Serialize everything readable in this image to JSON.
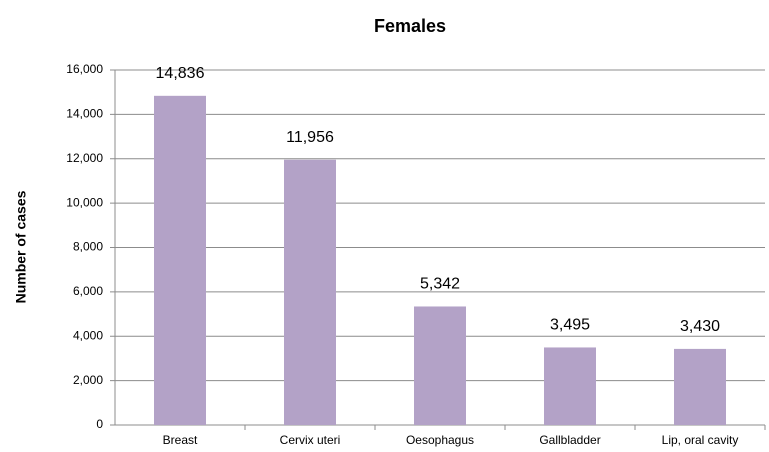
{
  "chart_data": {
    "type": "bar",
    "title": "Females",
    "y_label": "Number of cases",
    "categories": [
      "Breast",
      "Cervix uteri",
      "Oesophagus",
      "Gallbladder",
      "Lip, oral cavity"
    ],
    "values": [
      14836,
      11956,
      5342,
      3495,
      3430
    ],
    "value_labels": [
      "14,836",
      "11,956",
      "5,342",
      "3,495",
      "3,430"
    ],
    "color": "#b3a2c7",
    "ylim": [
      0,
      16000
    ],
    "yticks": [
      0,
      {
        "value": 2000,
        "label": "2,000"
      },
      {
        "value": 4000,
        "label": "4,000"
      },
      {
        "value": 6000,
        "label": "6,000"
      },
      {
        "value": 8000,
        "label": "8,000"
      },
      {
        "value": 10000,
        "label": "10,000"
      },
      {
        "value": 12000,
        "label": "12,000"
      },
      {
        "value": 14000,
        "label": "14,000"
      },
      {
        "value": 16000,
        "label": "16,000"
      }
    ],
    "grid": true
  }
}
